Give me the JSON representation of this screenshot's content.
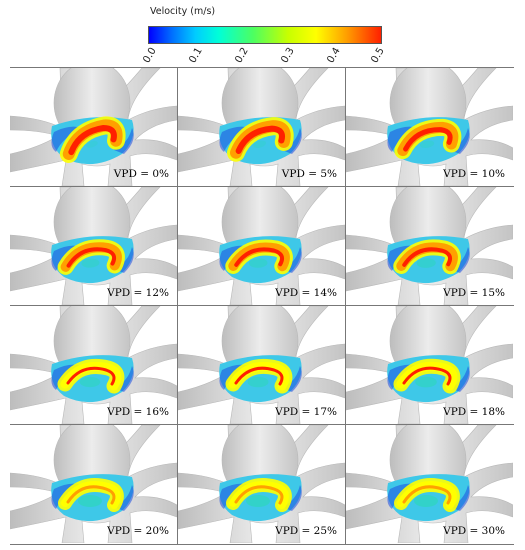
{
  "colorbar": {
    "title": "Velocity (m/s)",
    "ticks": [
      "0.0",
      "0.1",
      "0.2",
      "0.3",
      "0.4",
      "0.5"
    ],
    "colors": [
      "#0000ff",
      "#00ccff",
      "#4dff60",
      "#ffff00",
      "#ffa000",
      "#ff2000"
    ]
  },
  "panels": [
    {
      "label": "VPD = 0%"
    },
    {
      "label": "VPD = 5%"
    },
    {
      "label": "VPD = 10%"
    },
    {
      "label": "VPD = 12%"
    },
    {
      "label": "VPD = 14%"
    },
    {
      "label": "VPD = 15%"
    },
    {
      "label": "VPD = 16%"
    },
    {
      "label": "VPD = 17%"
    },
    {
      "label": "VPD = 18%"
    },
    {
      "label": "VPD = 20%"
    },
    {
      "label": "VPD = 25%"
    },
    {
      "label": "VPD = 30%"
    }
  ]
}
